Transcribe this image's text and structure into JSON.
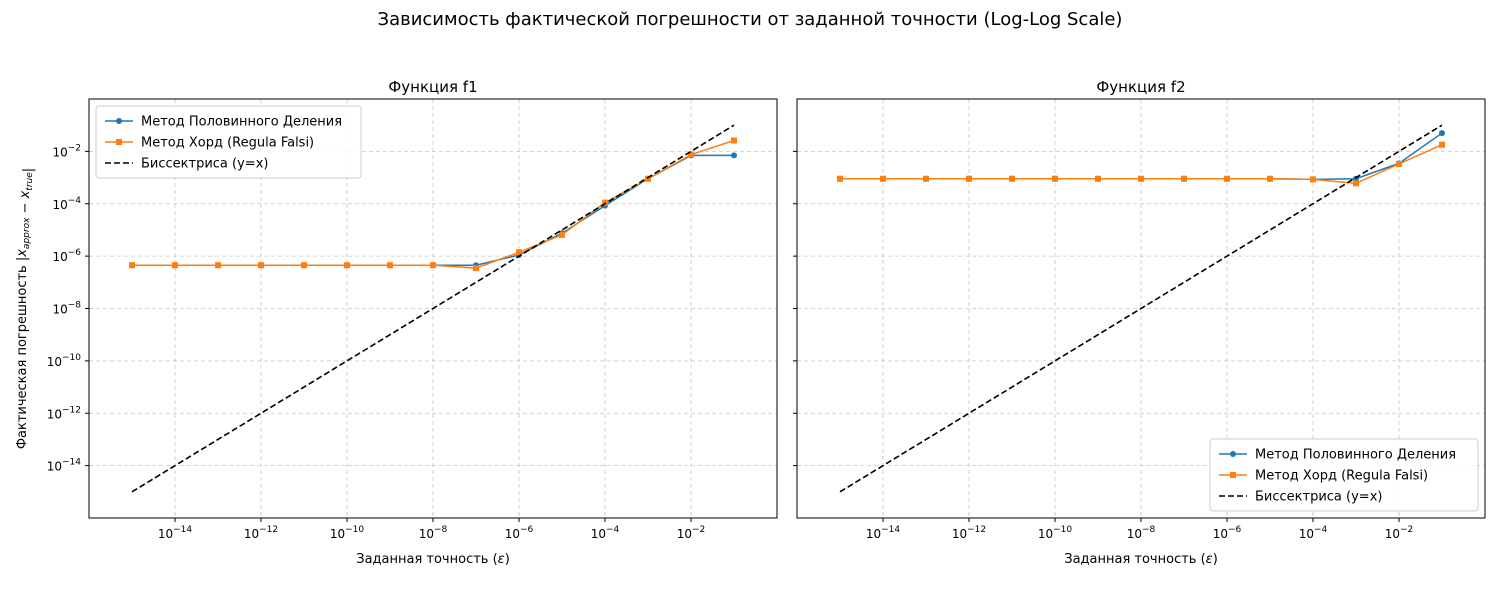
{
  "suptitle": "Зависимость фактической погрешности от заданной точности (Log-Log Scale)",
  "colors": {
    "bisection": "#1f77b4",
    "chord": "#ff7f0e",
    "bisector": "#000000",
    "grid": "#b0b0b0"
  },
  "chart_data": [
    {
      "type": "line",
      "title": "Функция f1",
      "xlabel": "Заданная точность (ε)",
      "ylabel": "Фактическая погрешность |x_approx − x_true|",
      "xscale": "log",
      "yscale": "log",
      "xlim": [
        1e-16,
        1.0
      ],
      "ylim": [
        1e-16,
        1.0
      ],
      "xticks": [
        1e-14,
        1e-12,
        1e-10,
        1e-08,
        1e-06,
        0.0001,
        0.01
      ],
      "yticks": [
        1e-14,
        1e-12,
        1e-10,
        1e-08,
        1e-06,
        0.0001,
        0.01
      ],
      "grid": true,
      "legend": "upper-left",
      "x": [
        1e-15,
        1e-14,
        1e-13,
        1e-12,
        1e-11,
        1e-10,
        1e-09,
        1e-08,
        1e-07,
        1e-06,
        1e-05,
        0.0001,
        0.001,
        0.01,
        0.1
      ],
      "series": [
        {
          "name": "Метод Половинного Деления",
          "marker": "circle",
          "style": "solid",
          "values": [
            4.5e-07,
            4.5e-07,
            4.5e-07,
            4.5e-07,
            4.5e-07,
            4.5e-07,
            4.5e-07,
            4.5e-07,
            4.5e-07,
            1.1e-06,
            7.5e-06,
            8.5e-05,
            0.0009,
            0.007,
            0.007
          ]
        },
        {
          "name": "Метод Хорд (Regula Falsi)",
          "marker": "square",
          "style": "solid",
          "values": [
            4.5e-07,
            4.5e-07,
            4.5e-07,
            4.5e-07,
            4.5e-07,
            4.5e-07,
            4.5e-07,
            4.5e-07,
            3.5e-07,
            1.4e-06,
            6.5e-06,
            0.00011,
            0.0009,
            0.0075,
            0.026
          ]
        },
        {
          "name": "Биссектриса (y=x)",
          "marker": "none",
          "style": "dashed",
          "values": [
            1e-15,
            1e-14,
            1e-13,
            1e-12,
            1e-11,
            1e-10,
            1e-09,
            1e-08,
            1e-07,
            1e-06,
            1e-05,
            0.0001,
            0.001,
            0.01,
            0.1
          ]
        }
      ]
    },
    {
      "type": "line",
      "title": "Функция f2",
      "xlabel": "Заданная точность (ε)",
      "ylabel": "",
      "xscale": "log",
      "yscale": "log",
      "xlim": [
        1e-16,
        1.0
      ],
      "ylim": [
        1e-16,
        1.0
      ],
      "xticks": [
        1e-14,
        1e-12,
        1e-10,
        1e-08,
        1e-06,
        0.0001,
        0.01
      ],
      "yticks": [],
      "grid": true,
      "legend": "lower-right",
      "x": [
        1e-15,
        1e-14,
        1e-13,
        1e-12,
        1e-11,
        1e-10,
        1e-09,
        1e-08,
        1e-07,
        1e-06,
        1e-05,
        0.0001,
        0.001,
        0.01,
        0.1
      ],
      "series": [
        {
          "name": "Метод Половинного Деления",
          "marker": "circle",
          "style": "solid",
          "values": [
            0.0009,
            0.0009,
            0.0009,
            0.0009,
            0.0009,
            0.0009,
            0.0009,
            0.0009,
            0.0009,
            0.0009,
            0.0009,
            0.00085,
            0.0009,
            0.0035,
            0.05
          ]
        },
        {
          "name": "Метод Хорд (Regula Falsi)",
          "marker": "square",
          "style": "solid",
          "values": [
            0.0009,
            0.0009,
            0.0009,
            0.0009,
            0.0009,
            0.0009,
            0.0009,
            0.0009,
            0.0009,
            0.0009,
            0.0009,
            0.00085,
            0.0006,
            0.0033,
            0.018
          ]
        },
        {
          "name": "Биссектриса (y=x)",
          "marker": "none",
          "style": "dashed",
          "values": [
            1e-15,
            1e-14,
            1e-13,
            1e-12,
            1e-11,
            1e-10,
            1e-09,
            1e-08,
            1e-07,
            1e-06,
            1e-05,
            0.0001,
            0.001,
            0.01,
            0.1
          ]
        }
      ]
    }
  ]
}
